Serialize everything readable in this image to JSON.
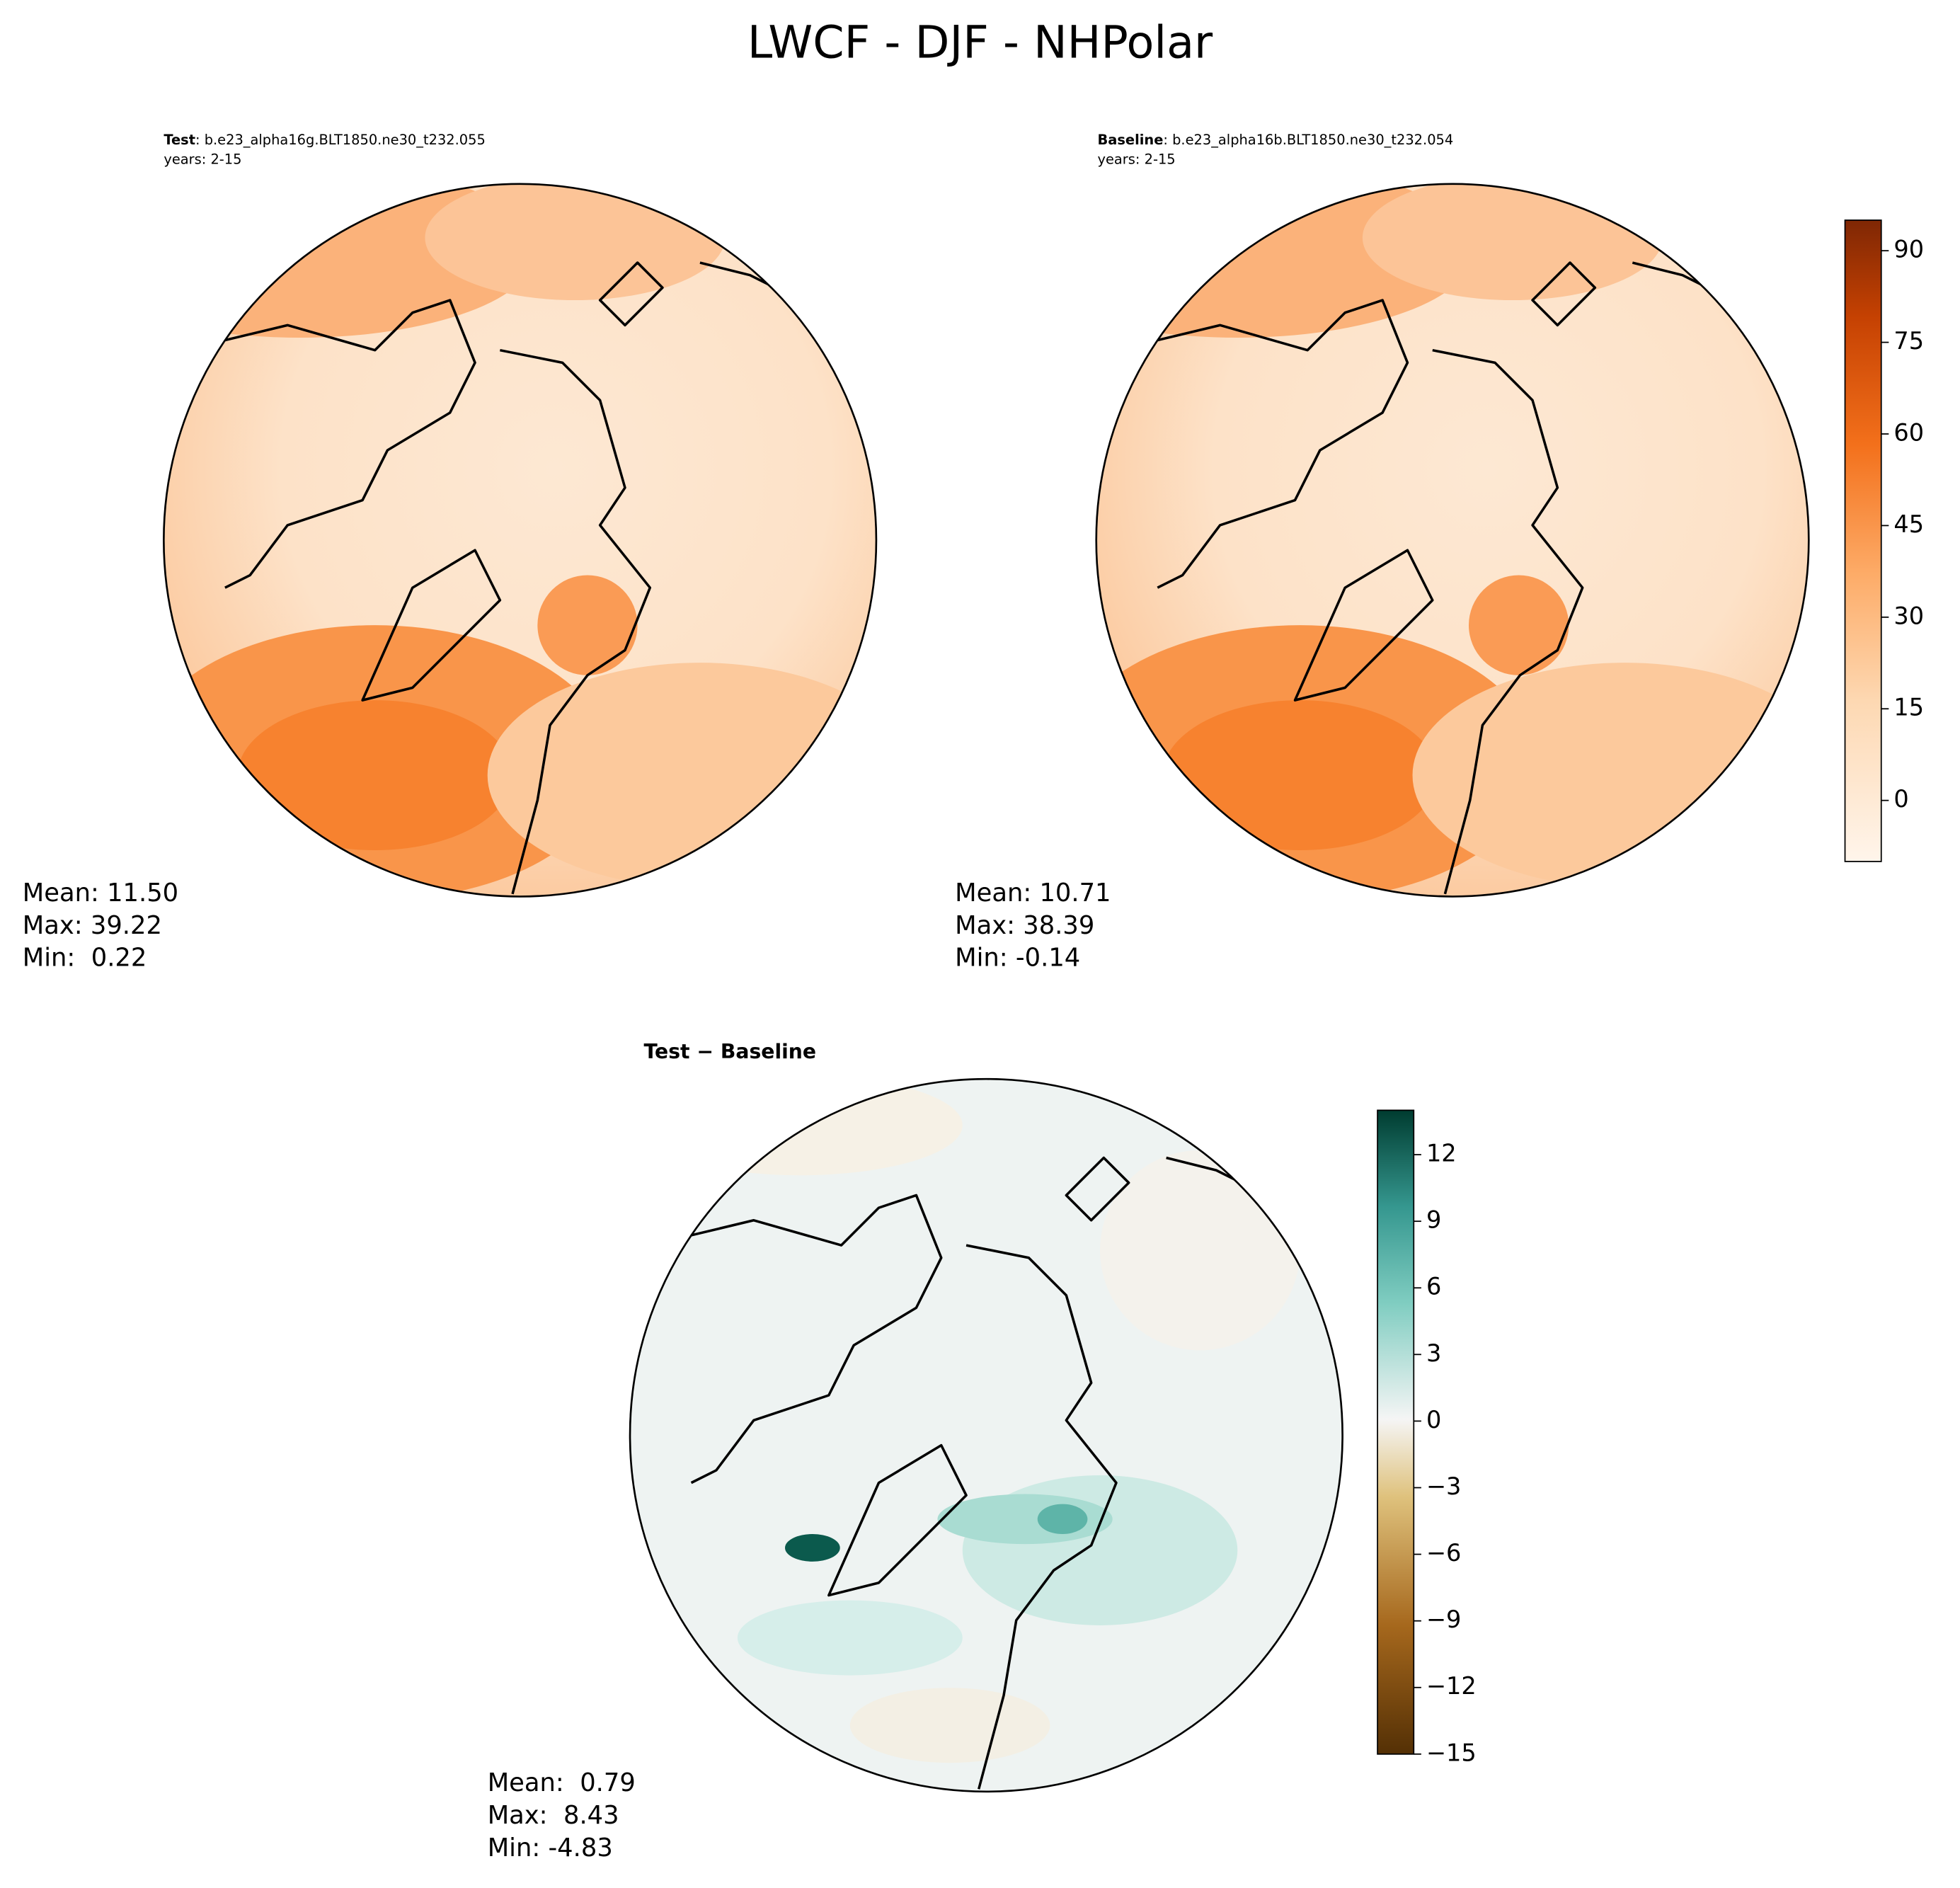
{
  "title": "LWCF - DJF - NHPolar",
  "panels": [
    {
      "label_bold": "Test",
      "label_rest": ": b.e23_alpha16g.BLT1850.ne30_t232.055",
      "years": "years: 2-15",
      "stats": [
        "Mean: 11.50",
        "Max: 39.22",
        "Min:  0.22"
      ]
    },
    {
      "label_bold": "Baseline",
      "label_rest": ": b.e23_alpha16b.BLT1850.ne30_t232.054",
      "years": "years: 2-15",
      "stats": [
        "Mean: 10.71",
        "Max: 38.39",
        "Min: -0.14"
      ]
    },
    {
      "label_bold": "Test − Baseline",
      "stats": [
        "Mean:  0.79",
        "Max:  8.43",
        "Min: -4.83"
      ]
    }
  ],
  "colorbars": [
    {
      "ylim": [
        -10,
        95
      ],
      "yticks": [
        0,
        15,
        30,
        45,
        60,
        75,
        90
      ]
    },
    {
      "ylim": [
        -15,
        14
      ],
      "yticks": [
        {
          "value": -15,
          "label": "−15"
        },
        {
          "value": -12,
          "label": "−12"
        },
        {
          "value": -9,
          "label": "−9"
        },
        {
          "value": -6,
          "label": "−6"
        },
        {
          "value": -3,
          "label": "−3"
        },
        0,
        3,
        6,
        9,
        12
      ]
    }
  ]
}
